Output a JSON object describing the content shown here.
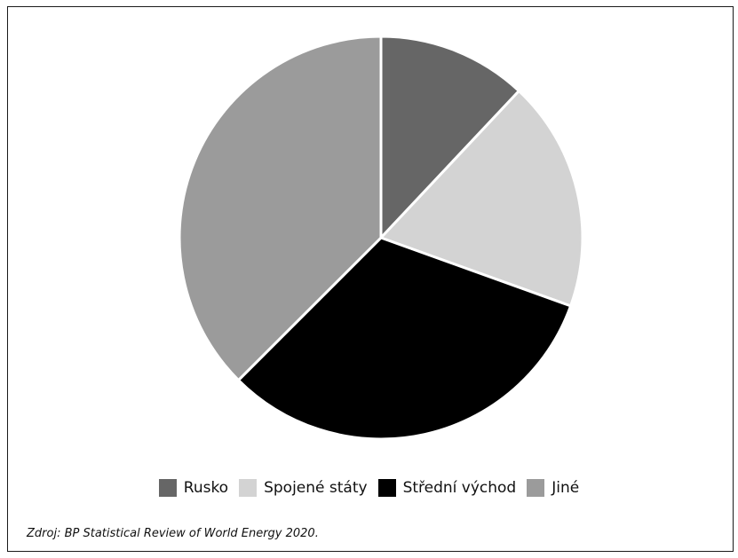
{
  "chart_data": {
    "type": "pie",
    "title": "",
    "slices": [
      {
        "label": "Rusko",
        "value": 12.0,
        "color": "#666666"
      },
      {
        "label": "Spojené státy",
        "value": 18.5,
        "color": "#d3d3d3"
      },
      {
        "label": "Střední východ",
        "value": 32.0,
        "color": "#000000"
      },
      {
        "label": "Jiné",
        "value": 37.5,
        "color": "#9b9b9b"
      }
    ],
    "start_angle_deg": 0,
    "direction": "clockwise",
    "legend_position": "bottom"
  },
  "legend": {
    "items": [
      {
        "label": "Rusko",
        "color": "#666666"
      },
      {
        "label": "Spojené státy",
        "color": "#d3d3d3"
      },
      {
        "label": "Střední východ",
        "color": "#000000"
      },
      {
        "label": "Jiné",
        "color": "#9b9b9b"
      }
    ]
  },
  "source": "Zdroj: BP Statistical Review of World Energy 2020."
}
